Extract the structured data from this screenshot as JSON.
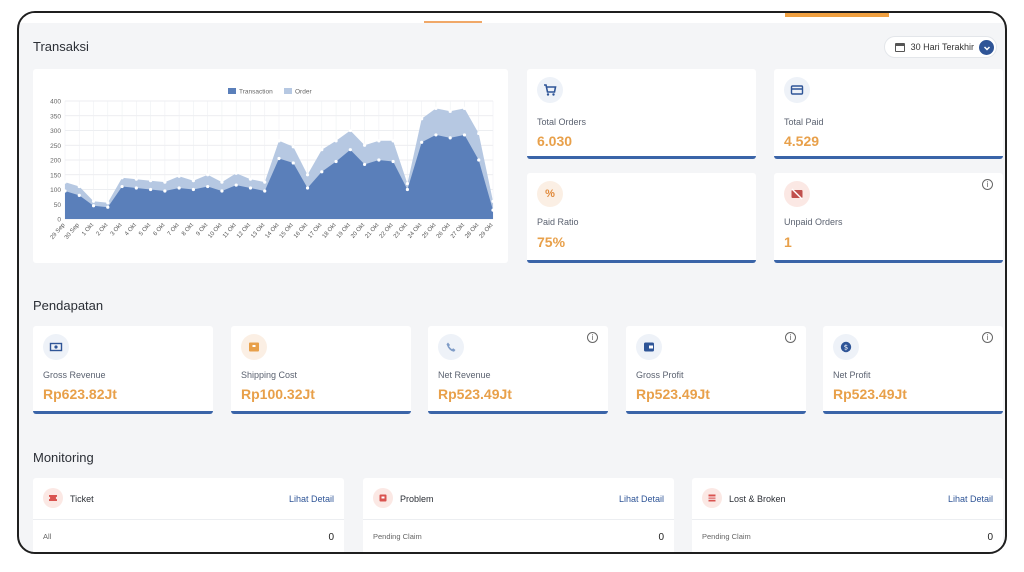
{
  "sections": {
    "transaksi": "Transaksi",
    "pendapatan": "Pendapatan",
    "monitoring": "Monitoring"
  },
  "date_filter": {
    "label": "30 Hari Terakhir"
  },
  "colors": {
    "transaction": "#5a7fba",
    "order": "#b6c8e2",
    "accent": "#e8a04a",
    "primary": "#2f5597"
  },
  "stats": [
    {
      "label": "Total Orders",
      "value": "6.030",
      "icon": "cart-icon"
    },
    {
      "label": "Total Paid",
      "value": "4.529",
      "icon": "card-icon"
    },
    {
      "label": "Paid Ratio",
      "value": "75%",
      "icon": "percent-icon"
    },
    {
      "label": "Unpaid Orders",
      "value": "1",
      "icon": "unpaid-icon"
    }
  ],
  "revenue": [
    {
      "label": "Gross Revenue",
      "value": "Rp623.82Jt",
      "icon": "money-icon"
    },
    {
      "label": "Shipping Cost",
      "value": "Rp100.32Jt",
      "icon": "box-icon"
    },
    {
      "label": "Net Revenue",
      "value": "Rp523.49Jt",
      "icon": "phone-icon"
    },
    {
      "label": "Gross Profit",
      "value": "Rp523.49Jt",
      "icon": "wallet-icon"
    },
    {
      "label": "Net Profit",
      "value": "Rp523.49Jt",
      "icon": "coin-icon"
    }
  ],
  "monitoring": [
    {
      "title": "Ticket",
      "link": "Lihat Detail",
      "row_label": "All",
      "row_value": "0"
    },
    {
      "title": "Problem",
      "link": "Lihat Detail",
      "row_label": "Pending Claim",
      "row_value": "0"
    },
    {
      "title": "Lost & Broken",
      "link": "Lihat Detail",
      "row_label": "Pending Claim",
      "row_value": "0"
    }
  ],
  "chart_data": {
    "type": "area",
    "legend": [
      "Transaction",
      "Order"
    ],
    "ylim": [
      0,
      400
    ],
    "yticks": [
      0,
      50,
      100,
      150,
      200,
      250,
      300,
      350,
      400
    ],
    "categories": [
      "29 Sep",
      "30 Sep",
      "1 Okt",
      "2 Okt",
      "3 Okt",
      "4 Okt",
      "5 Okt",
      "6 Okt",
      "7 Okt",
      "8 Okt",
      "9 Okt",
      "10 Okt",
      "11 Okt",
      "12 Okt",
      "13 Okt",
      "14 Okt",
      "15 Okt",
      "16 Okt",
      "17 Okt",
      "18 Okt",
      "19 Okt",
      "20 Okt",
      "21 Okt",
      "22 Okt",
      "23 Okt",
      "24 Okt",
      "25 Okt",
      "26 Okt",
      "27 Okt",
      "28 Okt",
      "29 Okt"
    ],
    "series": [
      {
        "name": "Transaction",
        "values": [
          95,
          80,
          45,
          40,
          110,
          105,
          100,
          95,
          105,
          100,
          110,
          95,
          115,
          105,
          95,
          205,
          190,
          105,
          160,
          195,
          235,
          185,
          200,
          195,
          100,
          260,
          285,
          275,
          285,
          200,
          30
        ]
      },
      {
        "name": "Order",
        "values": [
          125,
          110,
          60,
          55,
          140,
          135,
          130,
          125,
          145,
          130,
          150,
          125,
          155,
          135,
          125,
          265,
          245,
          150,
          235,
          265,
          300,
          250,
          265,
          265,
          120,
          340,
          375,
          365,
          375,
          290,
          60
        ]
      }
    ]
  }
}
